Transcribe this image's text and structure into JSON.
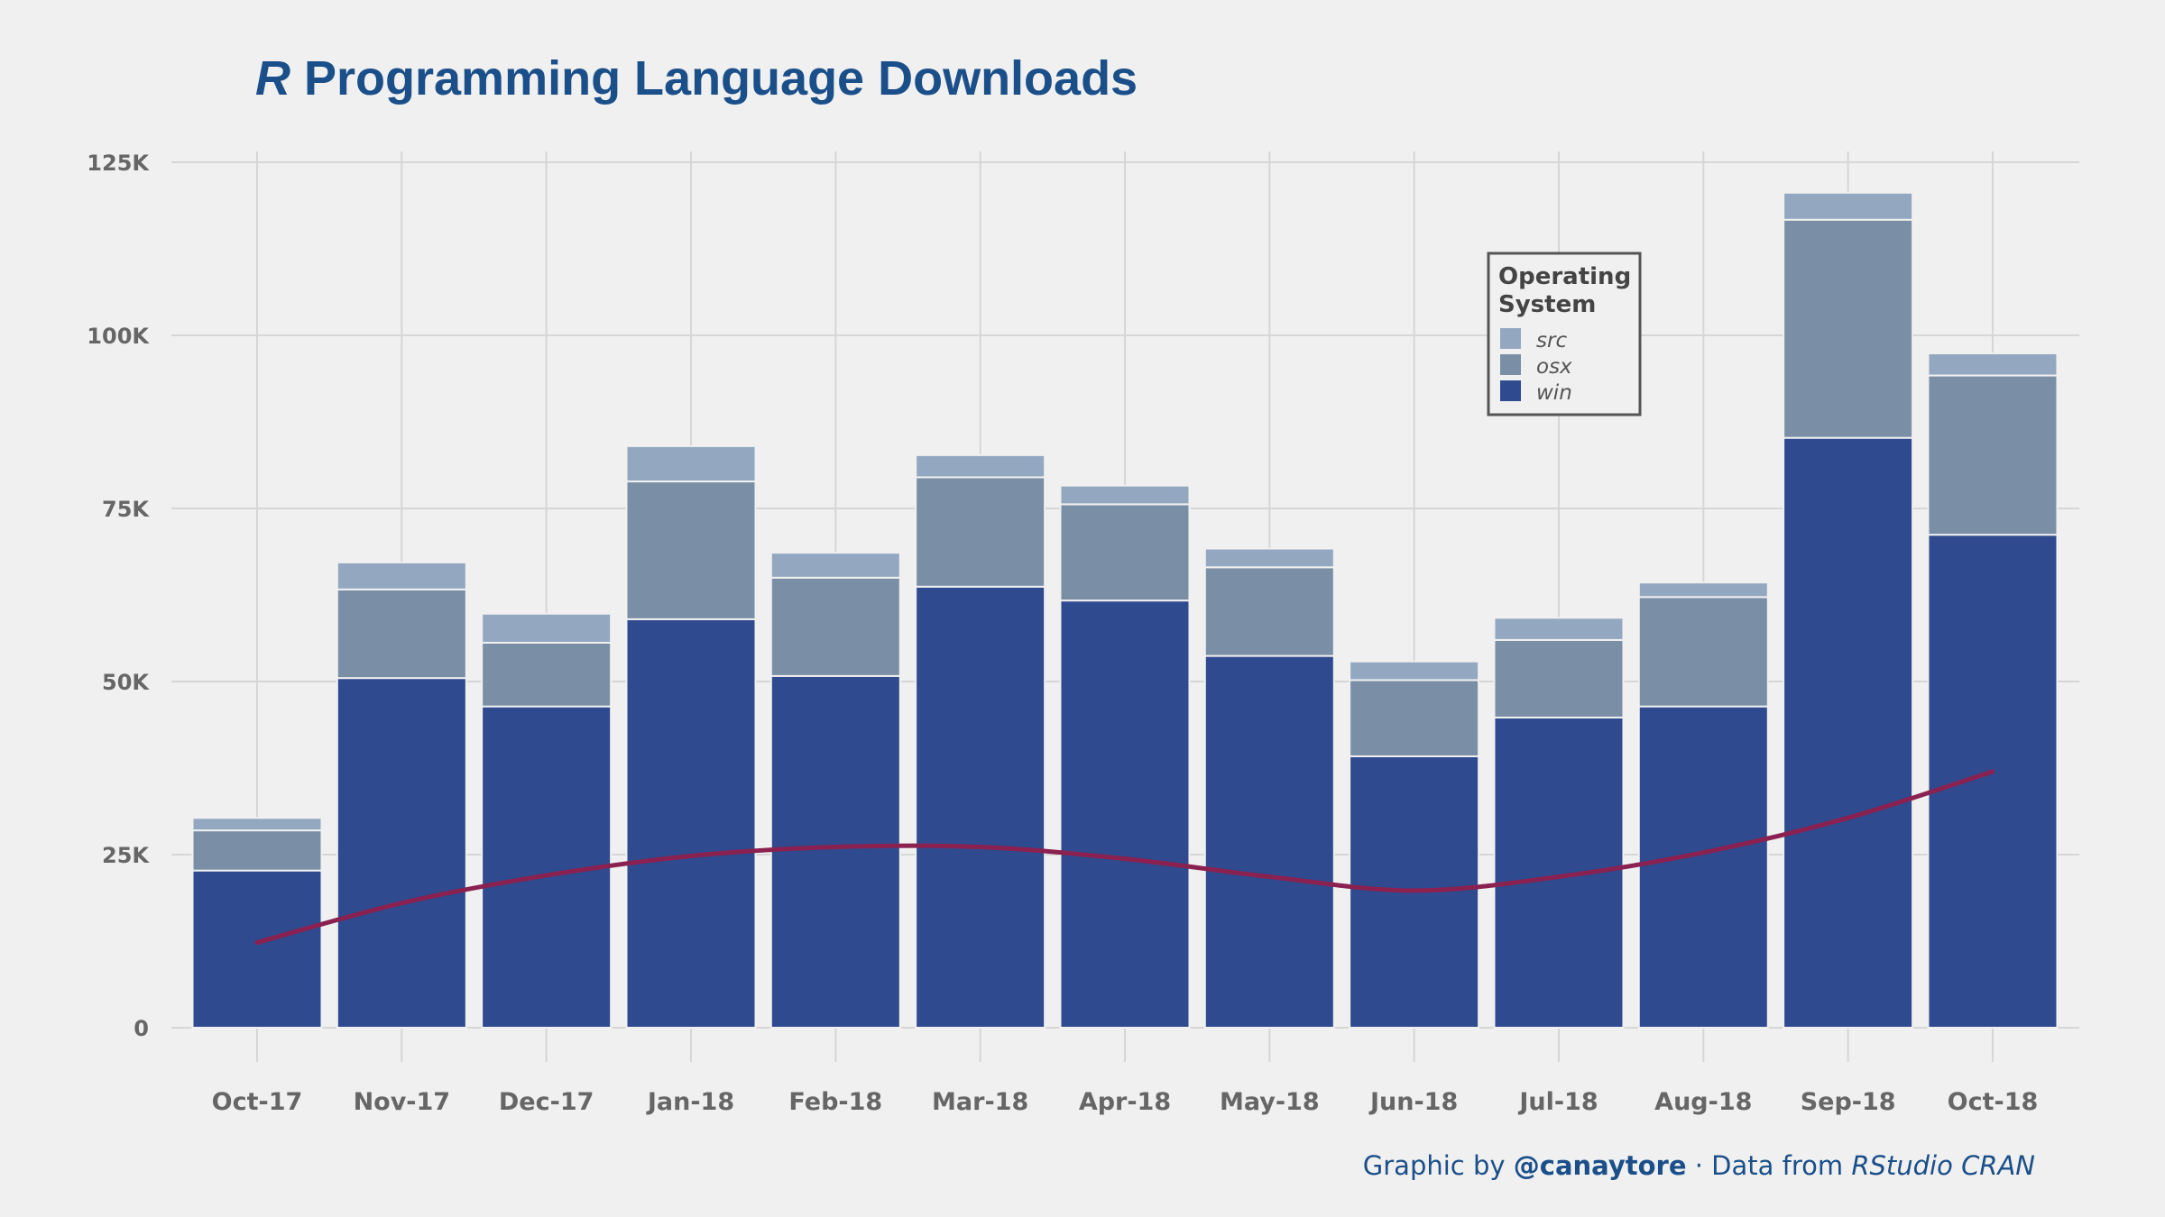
{
  "title": {
    "emph": "R",
    "rest": " Programming Language Downloads"
  },
  "caption": {
    "prefix": "Graphic by ",
    "handle": "@canaytore",
    "middle": " · Data from ",
    "source": "RStudio CRAN"
  },
  "colors": {
    "background": "#f0f0f0",
    "grid": "#d6d6d6",
    "win": "#2f4a8f",
    "osx": "#7a8fa6",
    "src": "#93a8c0",
    "trend": "#8a2150",
    "title": "#1b4f8a"
  },
  "chart_data": {
    "type": "bar",
    "stacked": true,
    "categories": [
      "Oct-17",
      "Nov-17",
      "Dec-17",
      "Jan-18",
      "Feb-18",
      "Mar-18",
      "Apr-18",
      "May-18",
      "Jun-18",
      "Jul-18",
      "Aug-18",
      "Sep-18",
      "Oct-18"
    ],
    "series": [
      {
        "name": "win",
        "values": [
          22700,
          50500,
          46400,
          59000,
          50800,
          63700,
          61700,
          53700,
          39200,
          44800,
          46400,
          85200,
          71200
        ]
      },
      {
        "name": "osx",
        "values": [
          5800,
          12800,
          9200,
          19900,
          14200,
          15800,
          13900,
          12800,
          11000,
          11200,
          15800,
          31500,
          23000
        ]
      },
      {
        "name": "src",
        "values": [
          1800,
          3900,
          4200,
          5100,
          3600,
          3200,
          2700,
          2700,
          2700,
          3200,
          2100,
          3900,
          3200
        ]
      }
    ],
    "trend": {
      "type": "line",
      "values": [
        12300,
        18000,
        22000,
        24800,
        26100,
        26100,
        24400,
        21800,
        19800,
        21800,
        25300,
        30300,
        37000
      ]
    },
    "ylim": [
      0,
      125000
    ],
    "yticks": [
      0,
      25000,
      50000,
      75000,
      100000,
      125000
    ],
    "ytick_labels": [
      "0",
      "25K",
      "50K",
      "75K",
      "100K",
      "125K"
    ],
    "xlabel": "",
    "ylabel": "",
    "grid": true,
    "legend": {
      "title_line1": "Operating",
      "title_line2": "System",
      "items": [
        "src",
        "osx",
        "win"
      ],
      "placement": "upper-right"
    }
  }
}
